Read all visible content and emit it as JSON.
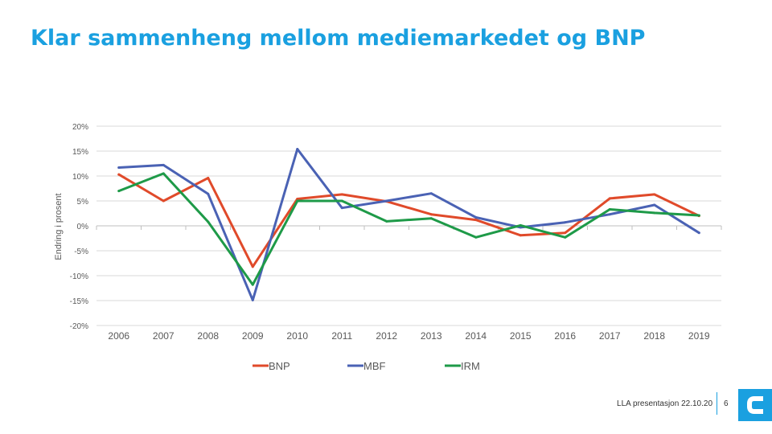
{
  "slide": {
    "title": "Klar sammenheng mellom mediemarkedet og BNP"
  },
  "footer": {
    "text": "LLA presentasjon 22.10.20",
    "page_number": "6",
    "accent_color": "#1aa0e0"
  },
  "chart_data": {
    "type": "line",
    "title": "",
    "xlabel": "",
    "ylabel": "Endring i prosent",
    "categories": [
      "2006",
      "2007",
      "2008",
      "2009",
      "2010",
      "2011",
      "2012",
      "2013",
      "2014",
      "2015",
      "2016",
      "2017",
      "2018",
      "2019"
    ],
    "ylim": [
      -20,
      20
    ],
    "y_ticks": [
      20,
      15,
      10,
      5,
      0,
      -5,
      -10,
      -15,
      -20
    ],
    "y_tick_labels": [
      "20%",
      "15%",
      "10%",
      "5%",
      "0%",
      "-5%",
      "-10%",
      "-15%",
      "-20%"
    ],
    "grid": true,
    "legend_position": "bottom",
    "series": [
      {
        "name": "BNP",
        "color": "#e04a2a",
        "values": [
          10.3,
          5.0,
          9.6,
          -8.2,
          5.4,
          6.3,
          4.9,
          2.3,
          1.2,
          -1.9,
          -1.4,
          5.5,
          6.3,
          2.0
        ]
      },
      {
        "name": "MBF",
        "color": "#4a62b4",
        "values": [
          11.7,
          12.2,
          6.4,
          -14.9,
          15.4,
          3.6,
          5.0,
          6.5,
          1.7,
          -0.3,
          0.7,
          2.3,
          4.2,
          -1.4
        ]
      },
      {
        "name": "IRM",
        "color": "#1e9a48",
        "values": [
          7.0,
          10.5,
          0.8,
          -11.8,
          5.0,
          5.0,
          0.9,
          1.5,
          -2.3,
          0.1,
          -2.3,
          3.3,
          2.6,
          2.1
        ]
      }
    ]
  }
}
